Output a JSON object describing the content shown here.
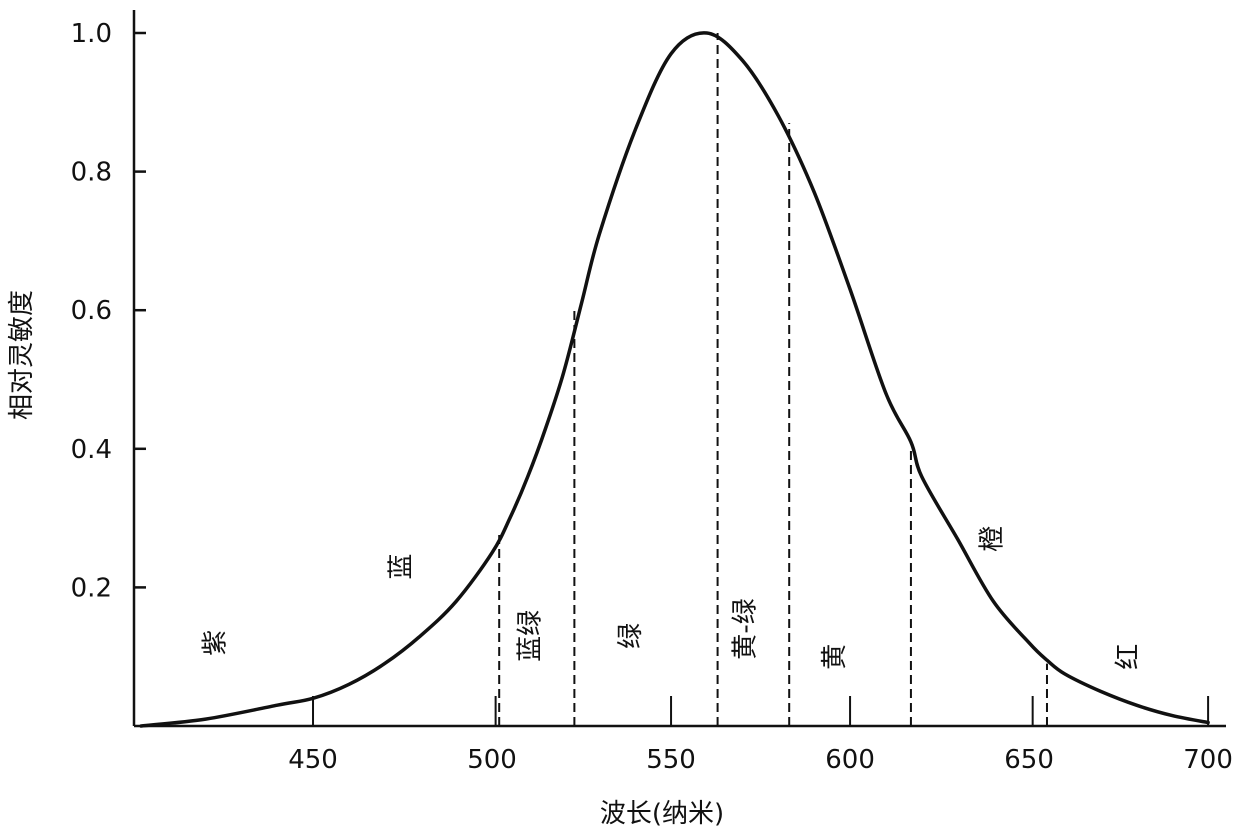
{
  "chart_data": {
    "type": "line",
    "xlabel": "波长(纳米)",
    "ylabel": "相对灵敏度",
    "xlim": [
      400,
      705
    ],
    "ylim": [
      0,
      1.0
    ],
    "x_ticks": [
      "450",
      "500",
      "550",
      "600",
      "650",
      "700"
    ],
    "y_ticks": [
      "0.2",
      "0.4",
      "0.6",
      "0.8",
      "1.0"
    ],
    "grid": false,
    "series": [
      {
        "x": [
          402,
          420,
          440,
          450,
          460,
          470,
          480,
          490,
          500,
          505,
          510,
          515,
          520,
          525,
          530,
          540,
          550,
          560,
          570,
          580,
          590,
          600,
          610,
          617,
          620,
          630,
          640,
          650,
          655,
          660,
          670,
          680,
          690,
          700
        ],
        "y": [
          0.0,
          0.01,
          0.03,
          0.04,
          0.06,
          0.09,
          0.13,
          0.18,
          0.25,
          0.3,
          0.36,
          0.43,
          0.51,
          0.61,
          0.71,
          0.86,
          0.97,
          1.0,
          0.96,
          0.88,
          0.77,
          0.63,
          0.48,
          0.41,
          0.36,
          0.27,
          0.18,
          0.12,
          0.095,
          0.075,
          0.05,
          0.03,
          0.015,
          0.005
        ]
      }
    ],
    "boundaries": [
      {
        "x": 502,
        "y": 0.28
      },
      {
        "x": 523,
        "y": 0.6
      },
      {
        "x": 563,
        "y": 1.0
      },
      {
        "x": 583,
        "y": 0.87
      },
      {
        "x": 617,
        "y": 0.4
      },
      {
        "x": 655,
        "y": 0.09
      }
    ],
    "short_ticks": [
      450,
      501,
      550,
      600,
      651,
      700
    ],
    "regions": [
      {
        "label": "紫",
        "x": 425,
        "y": 0.12
      },
      {
        "label": "蓝",
        "x": 477,
        "y": 0.23
      },
      {
        "label": "蓝绿",
        "x": 513,
        "y": 0.13
      },
      {
        "label": "绿",
        "x": 541,
        "y": 0.13
      },
      {
        "label": "黄-绿",
        "x": 573,
        "y": 0.14
      },
      {
        "label": "黄",
        "x": 598,
        "y": 0.1
      },
      {
        "label": "橙",
        "x": 642,
        "y": 0.27
      },
      {
        "label": "红",
        "x": 680,
        "y": 0.1
      }
    ]
  }
}
